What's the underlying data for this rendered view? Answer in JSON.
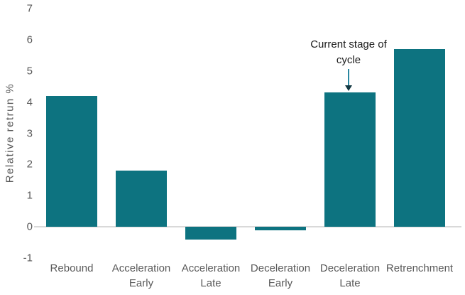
{
  "chart_data": {
    "type": "bar",
    "title": "",
    "ylabel": "Relative retrun %",
    "xlabel": "",
    "ylim": [
      -1,
      7
    ],
    "yticks": [
      7,
      6,
      5,
      4,
      3,
      2,
      1,
      0,
      -1
    ],
    "categories": [
      "Rebound",
      "Acceleration Early",
      "Acceleration Late",
      "Deceleration Early",
      "Deceleration Late",
      "Retrenchment"
    ],
    "category_lines": [
      [
        "Rebound"
      ],
      [
        "Acceleration",
        "Early"
      ],
      [
        "Acceleration",
        "Late"
      ],
      [
        "Deceleration",
        "Early"
      ],
      [
        "Deceleration",
        "Late"
      ],
      [
        "Retrenchment"
      ]
    ],
    "values": [
      4.2,
      1.8,
      -0.4,
      -0.1,
      4.3,
      5.7
    ],
    "grid": false,
    "legend": false,
    "annotation": {
      "text": "Current stage of\ncycle",
      "target_category": "Deceleration Late",
      "arrow_direction": "down"
    },
    "colors": {
      "bar": "#0d7380",
      "arrow_line": "#2a87a0",
      "arrow_head": "#133842",
      "axis_text": "#595959",
      "zero_line": "#d9d9d9",
      "annotation_text": "#1a1a1a",
      "background": "#ffffff"
    }
  }
}
